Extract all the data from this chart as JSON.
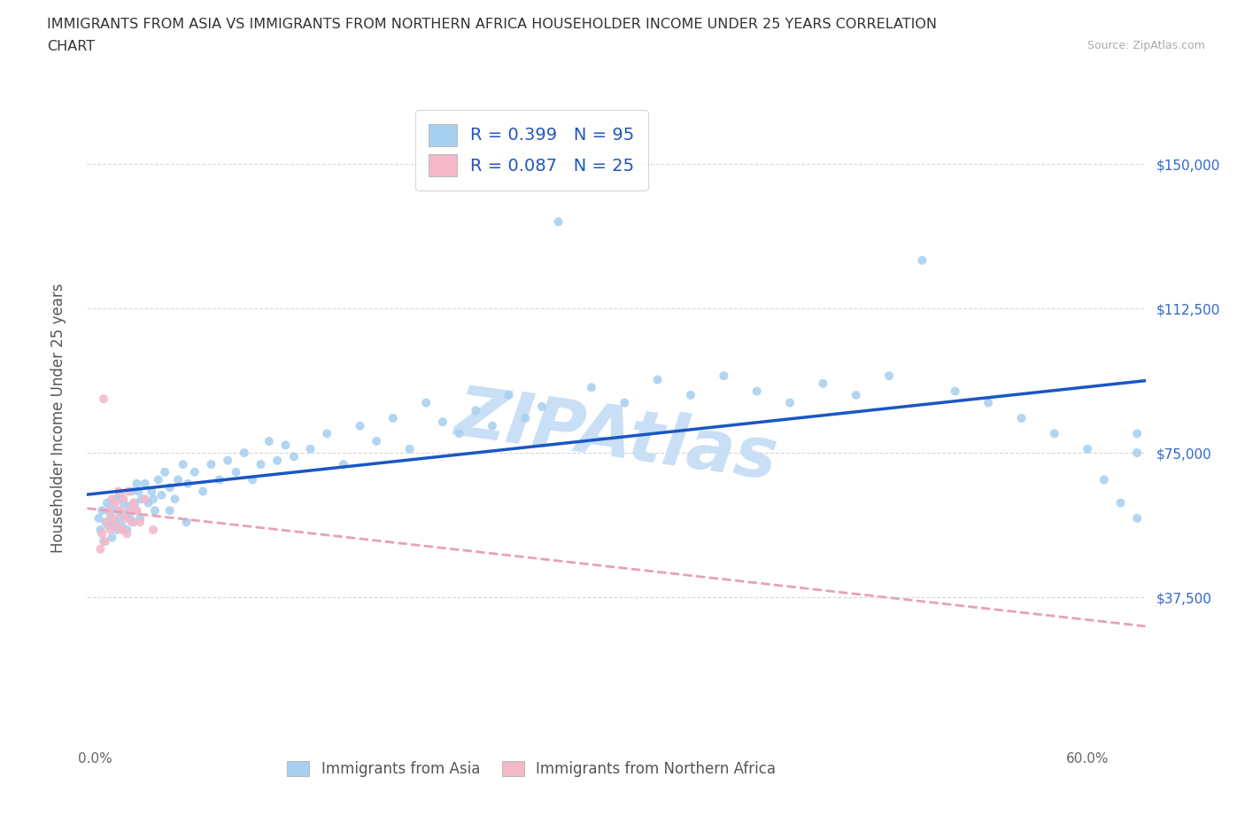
{
  "title_line1": "IMMIGRANTS FROM ASIA VS IMMIGRANTS FROM NORTHERN AFRICA HOUSEHOLDER INCOME UNDER 25 YEARS CORRELATION",
  "title_line2": "CHART",
  "source": "Source: ZipAtlas.com",
  "ylabel": "Householder Income Under 25 years",
  "x_ticks": [
    0.0,
    0.1,
    0.2,
    0.3,
    0.4,
    0.5,
    0.6
  ],
  "x_tick_labels": [
    "0.0%",
    "",
    "",
    "",
    "",
    "",
    "60.0%"
  ],
  "y_ticks": [
    0,
    37500,
    75000,
    112500,
    150000
  ],
  "y_tick_labels_right": [
    "",
    "$37,500",
    "$75,000",
    "$112,500",
    "$150,000"
  ],
  "xlim": [
    -0.005,
    0.635
  ],
  "ylim": [
    0,
    168000
  ],
  "legend_label_1": "Immigrants from Asia",
  "legend_label_2": "Immigrants from Northern Africa",
  "R1": 0.399,
  "N1": 95,
  "R2": 0.087,
  "N2": 25,
  "color_asia": "#a8d0f0",
  "color_africa": "#f5b8c8",
  "trendline_color_asia": "#1a56c4",
  "trendline_color_africa": "#e8a0b8",
  "watermark_text": "ZIPAtlas",
  "watermark_color": "#c8dff5",
  "background_color": "#ffffff",
  "grid_color": "#d8d8d8",
  "asia_x": [
    0.002,
    0.003,
    0.004,
    0.005,
    0.006,
    0.007,
    0.008,
    0.009,
    0.01,
    0.01,
    0.011,
    0.012,
    0.013,
    0.014,
    0.015,
    0.015,
    0.016,
    0.017,
    0.018,
    0.019,
    0.02,
    0.021,
    0.022,
    0.023,
    0.024,
    0.025,
    0.026,
    0.027,
    0.028,
    0.03,
    0.032,
    0.034,
    0.036,
    0.038,
    0.04,
    0.042,
    0.045,
    0.048,
    0.05,
    0.053,
    0.056,
    0.06,
    0.065,
    0.07,
    0.075,
    0.08,
    0.085,
    0.09,
    0.095,
    0.1,
    0.105,
    0.11,
    0.115,
    0.12,
    0.13,
    0.14,
    0.15,
    0.16,
    0.17,
    0.18,
    0.19,
    0.2,
    0.21,
    0.22,
    0.23,
    0.24,
    0.25,
    0.26,
    0.27,
    0.28,
    0.3,
    0.32,
    0.34,
    0.36,
    0.38,
    0.4,
    0.42,
    0.44,
    0.46,
    0.48,
    0.5,
    0.52,
    0.54,
    0.56,
    0.58,
    0.6,
    0.61,
    0.62,
    0.63,
    0.63,
    0.63,
    0.025,
    0.035,
    0.045,
    0.055
  ],
  "asia_y": [
    58000,
    55000,
    60000,
    52000,
    57000,
    62000,
    56000,
    59000,
    53000,
    61000,
    57000,
    63000,
    55000,
    60000,
    58000,
    64000,
    56000,
    62000,
    59000,
    55000,
    61000,
    58000,
    65000,
    57000,
    62000,
    60000,
    65000,
    58000,
    63000,
    67000,
    62000,
    65000,
    60000,
    68000,
    64000,
    70000,
    66000,
    63000,
    68000,
    72000,
    67000,
    70000,
    65000,
    72000,
    68000,
    73000,
    70000,
    75000,
    68000,
    72000,
    78000,
    73000,
    77000,
    74000,
    76000,
    80000,
    72000,
    82000,
    78000,
    84000,
    76000,
    88000,
    83000,
    80000,
    86000,
    82000,
    90000,
    84000,
    87000,
    135000,
    92000,
    88000,
    94000,
    90000,
    95000,
    91000,
    88000,
    93000,
    90000,
    95000,
    125000,
    91000,
    88000,
    84000,
    80000,
    76000,
    68000,
    62000,
    58000,
    80000,
    75000,
    67000,
    63000,
    60000,
    57000
  ],
  "africa_x": [
    0.003,
    0.004,
    0.005,
    0.006,
    0.007,
    0.008,
    0.009,
    0.01,
    0.011,
    0.012,
    0.013,
    0.014,
    0.015,
    0.016,
    0.017,
    0.018,
    0.019,
    0.02,
    0.021,
    0.022,
    0.023,
    0.025,
    0.027,
    0.03,
    0.035
  ],
  "africa_y": [
    50000,
    54000,
    89000,
    52000,
    57000,
    60000,
    55000,
    63000,
    58000,
    62000,
    56000,
    65000,
    60000,
    55000,
    63000,
    58000,
    54000,
    65000,
    60000,
    57000,
    62000,
    60000,
    57000,
    63000,
    55000
  ]
}
